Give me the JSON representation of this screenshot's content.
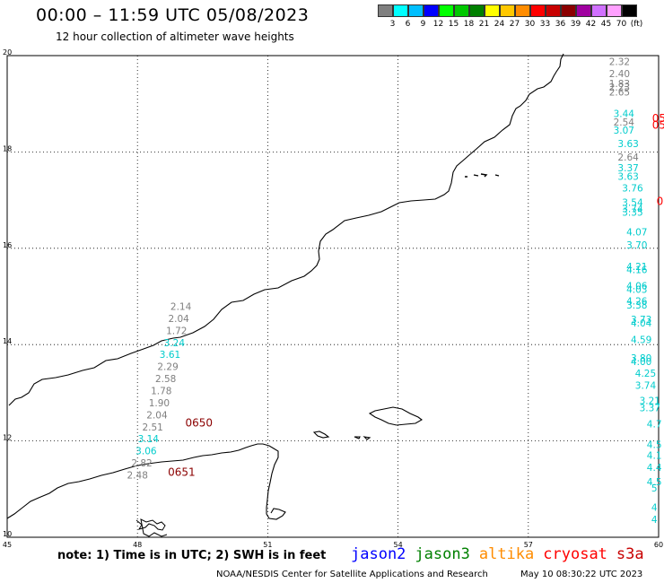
{
  "header": {
    "title": "00:00 – 11:59 UTC 05/08/2023",
    "subtitle": "12 hour collection of altimeter wave heights"
  },
  "legend": {
    "colors": [
      "#7f7f7f",
      "#00ffff",
      "#00bfff",
      "#0000ff",
      "#00ff00",
      "#00c800",
      "#008000",
      "#ffff00",
      "#ffc800",
      "#ff8c00",
      "#ff0000",
      "#c80000",
      "#8b0000",
      "#a000a0",
      "#d070ff",
      "#ffa0ff",
      "#000000"
    ],
    "values": [
      "3",
      "6",
      "9",
      "12",
      "15",
      "18",
      "21",
      "24",
      "27",
      "30",
      "33",
      "36",
      "39",
      "42",
      "45",
      "70",
      "(ft)"
    ]
  },
  "map": {
    "lon_range": [
      45,
      60
    ],
    "lat_range": [
      10,
      20
    ],
    "x_ticks": [
      "45",
      "48",
      "51",
      "54",
      "57",
      "60"
    ],
    "y_ticks": [
      "20",
      "18",
      "16",
      "14",
      "12",
      "10"
    ],
    "grid": true
  },
  "wave_points": [
    {
      "lon": 59.1,
      "lat": 19.8,
      "value": "2.32",
      "color": "#7f7f7f"
    },
    {
      "lon": 59.1,
      "lat": 19.55,
      "value": "2.40",
      "color": "#7f7f7f"
    },
    {
      "lon": 59.1,
      "lat": 19.35,
      "value": "1.83",
      "color": "#7f7f7f"
    },
    {
      "lon": 59.1,
      "lat": 19.27,
      "value": "2.23",
      "color": "#7f7f7f"
    },
    {
      "lon": 59.1,
      "lat": 19.17,
      "value": "2.65",
      "color": "#7f7f7f"
    },
    {
      "lon": 59.2,
      "lat": 18.72,
      "value": "3.44",
      "color": "#00cccc"
    },
    {
      "lon": 59.2,
      "lat": 18.55,
      "value": "2.54",
      "color": "#7f7f7f"
    },
    {
      "lon": 59.2,
      "lat": 18.38,
      "value": "3.07",
      "color": "#00cccc"
    },
    {
      "lon": 59.3,
      "lat": 18.1,
      "value": "3.63",
      "color": "#00cccc"
    },
    {
      "lon": 59.3,
      "lat": 17.82,
      "value": "2.64",
      "color": "#7f7f7f"
    },
    {
      "lon": 59.3,
      "lat": 17.6,
      "value": "3.37",
      "color": "#00cccc"
    },
    {
      "lon": 59.3,
      "lat": 17.42,
      "value": "3.63",
      "color": "#00cccc"
    },
    {
      "lon": 59.4,
      "lat": 17.18,
      "value": "3.76",
      "color": "#00cccc"
    },
    {
      "lon": 59.4,
      "lat": 16.88,
      "value": "3.54",
      "color": "#00cccc"
    },
    {
      "lon": 59.4,
      "lat": 16.75,
      "value": "3.74",
      "color": "#00cccc"
    },
    {
      "lon": 59.4,
      "lat": 16.68,
      "value": "3.35",
      "color": "#00cccc"
    },
    {
      "lon": 59.5,
      "lat": 16.27,
      "value": "4.07",
      "color": "#00cccc"
    },
    {
      "lon": 59.5,
      "lat": 16.0,
      "value": "3.70",
      "color": "#00cccc"
    },
    {
      "lon": 59.5,
      "lat": 15.55,
      "value": "4.21",
      "color": "#00cccc"
    },
    {
      "lon": 59.5,
      "lat": 15.48,
      "value": "4.16",
      "color": "#00cccc"
    },
    {
      "lon": 59.5,
      "lat": 15.15,
      "value": "4.06",
      "color": "#00cccc"
    },
    {
      "lon": 59.5,
      "lat": 15.07,
      "value": "4.03",
      "color": "#00cccc"
    },
    {
      "lon": 59.5,
      "lat": 14.83,
      "value": "4.26",
      "color": "#00cccc"
    },
    {
      "lon": 59.5,
      "lat": 14.75,
      "value": "3.38",
      "color": "#00cccc"
    },
    {
      "lon": 59.6,
      "lat": 14.45,
      "value": "3.73",
      "color": "#00cccc"
    },
    {
      "lon": 59.6,
      "lat": 14.38,
      "value": "4.04",
      "color": "#00cccc"
    },
    {
      "lon": 59.6,
      "lat": 14.03,
      "value": "4.59",
      "color": "#00cccc"
    },
    {
      "lon": 59.6,
      "lat": 13.65,
      "value": "3.80",
      "color": "#00cccc"
    },
    {
      "lon": 59.6,
      "lat": 13.58,
      "value": "4.00",
      "color": "#00cccc"
    },
    {
      "lon": 59.7,
      "lat": 13.33,
      "value": "4.25",
      "color": "#00cccc"
    },
    {
      "lon": 59.7,
      "lat": 13.08,
      "value": "3.74",
      "color": "#00cccc"
    },
    {
      "lon": 59.8,
      "lat": 12.77,
      "value": "3.21",
      "color": "#00cccc"
    },
    {
      "lon": 59.8,
      "lat": 12.62,
      "value": "3.37",
      "color": "#00cccc"
    },
    {
      "lon": 59.9,
      "lat": 12.28,
      "value": "4.7",
      "color": "#00cccc"
    },
    {
      "lon": 59.9,
      "lat": 11.85,
      "value": "4.5",
      "color": "#00cccc"
    },
    {
      "lon": 59.9,
      "lat": 11.63,
      "value": "4.1",
      "color": "#00cccc"
    },
    {
      "lon": 59.9,
      "lat": 11.38,
      "value": "4.4",
      "color": "#00cccc"
    },
    {
      "lon": 59.9,
      "lat": 11.08,
      "value": "4.5",
      "color": "#00cccc"
    },
    {
      "lon": 59.9,
      "lat": 10.95,
      "value": "5",
      "color": "#00cccc"
    },
    {
      "lon": 59.9,
      "lat": 10.55,
      "value": "4",
      "color": "#00cccc"
    },
    {
      "lon": 59.9,
      "lat": 10.3,
      "value": "4",
      "color": "#00cccc"
    },
    {
      "lon": 49.0,
      "lat": 14.72,
      "value": "2.14",
      "color": "#7f7f7f"
    },
    {
      "lon": 48.95,
      "lat": 14.47,
      "value": "2.04",
      "color": "#7f7f7f"
    },
    {
      "lon": 48.9,
      "lat": 14.22,
      "value": "1.72",
      "color": "#7f7f7f"
    },
    {
      "lon": 48.85,
      "lat": 13.97,
      "value": "3.24",
      "color": "#00cccc"
    },
    {
      "lon": 48.75,
      "lat": 13.72,
      "value": "3.61",
      "color": "#00cccc"
    },
    {
      "lon": 48.7,
      "lat": 13.47,
      "value": "2.29",
      "color": "#7f7f7f"
    },
    {
      "lon": 48.65,
      "lat": 13.22,
      "value": "2.58",
      "color": "#7f7f7f"
    },
    {
      "lon": 48.55,
      "lat": 12.97,
      "value": "1.78",
      "color": "#7f7f7f"
    },
    {
      "lon": 48.5,
      "lat": 12.72,
      "value": "1.90",
      "color": "#7f7f7f"
    },
    {
      "lon": 48.45,
      "lat": 12.47,
      "value": "2.04",
      "color": "#7f7f7f"
    },
    {
      "lon": 48.35,
      "lat": 12.22,
      "value": "2.51",
      "color": "#7f7f7f"
    },
    {
      "lon": 48.25,
      "lat": 11.97,
      "value": "3.14",
      "color": "#00cccc"
    },
    {
      "lon": 48.2,
      "lat": 11.72,
      "value": "3.06",
      "color": "#00cccc"
    },
    {
      "lon": 48.1,
      "lat": 11.47,
      "value": "2.82",
      "color": "#7f7f7f"
    },
    {
      "lon": 48.0,
      "lat": 11.22,
      "value": "2.48",
      "color": "#7f7f7f"
    }
  ],
  "time_labels": [
    {
      "lon": 49.1,
      "lat": 12.3,
      "value": "0650",
      "color": "#8b0000"
    },
    {
      "lon": 48.7,
      "lat": 11.28,
      "value": "0651",
      "color": "#8b0000"
    },
    {
      "lon": 59.85,
      "lat": 18.62,
      "value": "05",
      "color": "#ff0000"
    },
    {
      "lon": 59.85,
      "lat": 18.48,
      "value": "05",
      "color": "#ff0000"
    },
    {
      "lon": 59.95,
      "lat": 16.9,
      "value": "0",
      "color": "#ff0000"
    }
  ],
  "footer": {
    "note": "note: 1) Time is in UTC; 2) SWH is in feet",
    "satellites": [
      {
        "name": "jason2",
        "color": "#0000ff"
      },
      {
        "name": "jason3",
        "color": "#008000"
      },
      {
        "name": "altika",
        "color": "#ff8c00"
      },
      {
        "name": "cryosat",
        "color": "#ff0000"
      },
      {
        "name": "s3a",
        "color": "#c80000"
      }
    ],
    "credit": "NOAA/NESDIS Center for Satellite Applications and Research",
    "timestamp": "May 10 08:30:22 UTC 2023"
  }
}
